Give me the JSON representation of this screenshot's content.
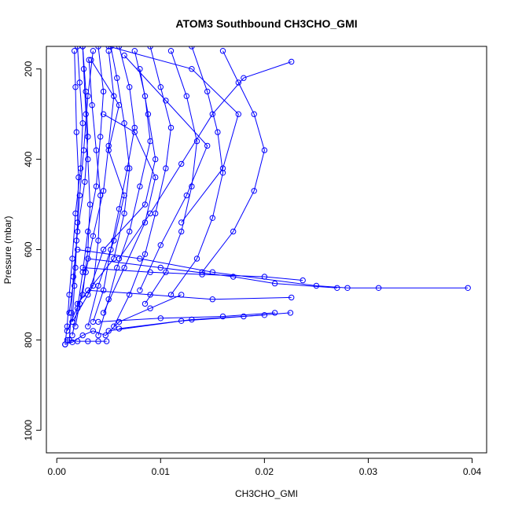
{
  "chart_data": {
    "type": "line",
    "title": "ATOM3 Southbound CH3CHO_GMI",
    "xlabel": "CH3CHO_GMI",
    "ylabel": "Pressure (mbar)",
    "xlim": [
      -0.001,
      0.0414
    ],
    "ylim": [
      1050,
      150
    ],
    "y_axis_reversed": true,
    "grid": false,
    "legend": "none",
    "x_ticks": [
      0.0,
      0.01,
      0.02,
      0.03,
      0.04
    ],
    "x_tick_labels": [
      "0.00",
      "0.01",
      "0.02",
      "0.03",
      "0.04"
    ],
    "y_ticks": [
      200,
      400,
      600,
      800,
      1000
    ],
    "y_tick_labels": [
      "200",
      "400",
      "600",
      "800",
      "1000"
    ],
    "series_color": "#0000ff",
    "marker": "open-circle",
    "series": [
      {
        "values": [
          [
            0.002,
            150
          ],
          [
            0.0022,
            230
          ],
          [
            0.0025,
            320
          ],
          [
            0.0023,
            420
          ],
          [
            0.0018,
            520
          ],
          [
            0.0015,
            620
          ],
          [
            0.0012,
            700
          ],
          [
            0.001,
            770
          ],
          [
            0.0008,
            810
          ]
        ]
      },
      {
        "values": [
          [
            0.0025,
            150
          ],
          [
            0.0028,
            250
          ],
          [
            0.003,
            350
          ],
          [
            0.0027,
            450
          ],
          [
            0.002,
            560
          ],
          [
            0.0016,
            660
          ],
          [
            0.0014,
            740
          ],
          [
            0.0012,
            800
          ]
        ]
      },
      {
        "values": [
          [
            0.0035,
            160
          ],
          [
            0.003,
            260
          ],
          [
            0.0026,
            380
          ],
          [
            0.0022,
            480
          ],
          [
            0.0019,
            580
          ],
          [
            0.0017,
            680
          ],
          [
            0.0015,
            760
          ]
        ]
      },
      {
        "values": [
          [
            0.004,
            150
          ],
          [
            0.0045,
            250
          ],
          [
            0.0042,
            350
          ],
          [
            0.0038,
            460
          ],
          [
            0.003,
            560
          ],
          [
            0.0025,
            650
          ],
          [
            0.002,
            730
          ],
          [
            0.0015,
            790
          ]
        ]
      },
      {
        "values": [
          [
            0.005,
            160
          ],
          [
            0.0055,
            260
          ],
          [
            0.005,
            370
          ],
          [
            0.0045,
            470
          ],
          [
            0.0035,
            570
          ],
          [
            0.0028,
            650
          ],
          [
            0.0022,
            720
          ],
          [
            0.0018,
            770
          ]
        ]
      },
      {
        "values": [
          [
            0.006,
            150
          ],
          [
            0.007,
            240
          ],
          [
            0.0075,
            330
          ],
          [
            0.0068,
            420
          ],
          [
            0.006,
            510
          ],
          [
            0.0052,
            600
          ],
          [
            0.0045,
            690
          ],
          [
            0.0035,
            760
          ]
        ]
      },
      {
        "values": [
          [
            0.0075,
            160
          ],
          [
            0.0085,
            260
          ],
          [
            0.009,
            360
          ],
          [
            0.008,
            460
          ],
          [
            0.007,
            560
          ],
          [
            0.0058,
            640
          ],
          [
            0.005,
            710
          ],
          [
            0.004,
            790
          ]
        ]
      },
      {
        "values": [
          [
            0.009,
            150
          ],
          [
            0.01,
            240
          ],
          [
            0.011,
            330
          ],
          [
            0.0105,
            420
          ],
          [
            0.0095,
            520
          ],
          [
            0.0085,
            610
          ],
          [
            0.007,
            700
          ],
          [
            0.0055,
            770
          ]
        ]
      },
      {
        "values": [
          [
            0.011,
            160
          ],
          [
            0.0125,
            260
          ],
          [
            0.0135,
            360
          ],
          [
            0.013,
            460
          ],
          [
            0.012,
            560
          ],
          [
            0.0105,
            650
          ],
          [
            0.0085,
            720
          ]
        ]
      },
      {
        "values": [
          [
            0.013,
            150
          ],
          [
            0.0145,
            250
          ],
          [
            0.0155,
            340
          ],
          [
            0.016,
            430
          ],
          [
            0.015,
            530
          ],
          [
            0.0135,
            620
          ],
          [
            0.011,
            700
          ]
        ]
      },
      {
        "values": [
          [
            0.016,
            160
          ],
          [
            0.0175,
            230
          ],
          [
            0.019,
            300
          ],
          [
            0.02,
            380
          ],
          [
            0.019,
            470
          ],
          [
            0.017,
            560
          ],
          [
            0.014,
            650
          ]
        ]
      },
      {
        "values": [
          [
            0.0226,
            184
          ],
          [
            0.018,
            220
          ],
          [
            0.015,
            300
          ],
          [
            0.012,
            410
          ],
          [
            0.009,
            520
          ],
          [
            0.006,
            620
          ]
        ]
      },
      {
        "values": [
          [
            0.002,
            600
          ],
          [
            0.008,
            620
          ],
          [
            0.015,
            650
          ],
          [
            0.025,
            680
          ],
          [
            0.028,
            685
          ],
          [
            0.031,
            685
          ],
          [
            0.0396,
            685
          ]
        ]
      },
      {
        "values": [
          [
            0.003,
            620
          ],
          [
            0.01,
            640
          ],
          [
            0.017,
            660
          ],
          [
            0.021,
            675
          ],
          [
            0.027,
            685
          ]
        ]
      },
      {
        "values": [
          [
            0.0025,
            640
          ],
          [
            0.009,
            650
          ],
          [
            0.014,
            655
          ],
          [
            0.02,
            660
          ],
          [
            0.0237,
            668
          ]
        ]
      },
      {
        "values": [
          [
            0.003,
            690
          ],
          [
            0.009,
            700
          ],
          [
            0.015,
            710
          ],
          [
            0.0226,
            706
          ]
        ]
      },
      {
        "values": [
          [
            0.004,
            760
          ],
          [
            0.01,
            752
          ],
          [
            0.016,
            748
          ],
          [
            0.021,
            740
          ]
        ]
      },
      {
        "values": [
          [
            0.005,
            780
          ],
          [
            0.012,
            758
          ],
          [
            0.018,
            748
          ],
          [
            0.0225,
            740
          ]
        ]
      },
      {
        "values": [
          [
            0.006,
            775
          ],
          [
            0.013,
            755
          ],
          [
            0.02,
            745
          ]
        ]
      },
      {
        "values": [
          [
            0.001,
            800
          ],
          [
            0.002,
            803
          ],
          [
            0.003,
            803
          ],
          [
            0.004,
            803
          ],
          [
            0.0048,
            803
          ]
        ]
      },
      {
        "values": [
          [
            0.0008,
            810
          ],
          [
            0.0015,
            805
          ],
          [
            0.0025,
            790
          ],
          [
            0.0035,
            780
          ],
          [
            0.0047,
            790
          ],
          [
            0.006,
            760
          ],
          [
            0.009,
            730
          ],
          [
            0.012,
            700
          ]
        ]
      },
      {
        "values": [
          [
            0.001,
            780
          ],
          [
            0.0025,
            700
          ],
          [
            0.003,
            600
          ],
          [
            0.0032,
            500
          ],
          [
            0.003,
            400
          ],
          [
            0.0028,
            300
          ],
          [
            0.0026,
            200
          ],
          [
            0.0025,
            150
          ]
        ]
      },
      {
        "values": [
          [
            0.0015,
            760
          ],
          [
            0.0035,
            680
          ],
          [
            0.004,
            580
          ],
          [
            0.0042,
            480
          ],
          [
            0.0038,
            380
          ],
          [
            0.0034,
            280
          ],
          [
            0.0031,
            180
          ]
        ]
      },
      {
        "values": [
          [
            0.0012,
            740
          ],
          [
            0.0018,
            640
          ],
          [
            0.002,
            540
          ],
          [
            0.0021,
            440
          ],
          [
            0.0019,
            340
          ],
          [
            0.0018,
            240
          ],
          [
            0.0017,
            160
          ]
        ]
      },
      {
        "values": [
          [
            0.002,
            720
          ],
          [
            0.0055,
            620
          ],
          [
            0.0065,
            520
          ],
          [
            0.007,
            420
          ],
          [
            0.0065,
            320
          ],
          [
            0.0058,
            220
          ],
          [
            0.0052,
            150
          ]
        ]
      },
      {
        "values": [
          [
            0.003,
            700
          ],
          [
            0.0045,
            600
          ],
          [
            0.0085,
            500
          ],
          [
            0.0095,
            400
          ],
          [
            0.0088,
            300
          ],
          [
            0.008,
            200
          ]
        ]
      },
      {
        "values": [
          [
            0.005,
            150
          ],
          [
            0.013,
            200
          ],
          [
            0.0175,
            300
          ],
          [
            0.016,
            420
          ],
          [
            0.012,
            540
          ]
        ]
      },
      {
        "values": [
          [
            0.0065,
            170
          ],
          [
            0.0105,
            270
          ],
          [
            0.0145,
            370
          ],
          [
            0.0125,
            480
          ],
          [
            0.01,
            590
          ],
          [
            0.008,
            690
          ]
        ]
      },
      {
        "values": [
          [
            0.0045,
            300
          ],
          [
            0.0075,
            340
          ],
          [
            0.0095,
            440
          ],
          [
            0.0085,
            540
          ],
          [
            0.0065,
            640
          ],
          [
            0.0045,
            740
          ]
        ]
      },
      {
        "values": [
          [
            0.0033,
            180
          ],
          [
            0.006,
            280
          ],
          [
            0.005,
            380
          ],
          [
            0.0065,
            480
          ],
          [
            0.0055,
            580
          ],
          [
            0.004,
            680
          ],
          [
            0.003,
            770
          ]
        ]
      }
    ]
  }
}
